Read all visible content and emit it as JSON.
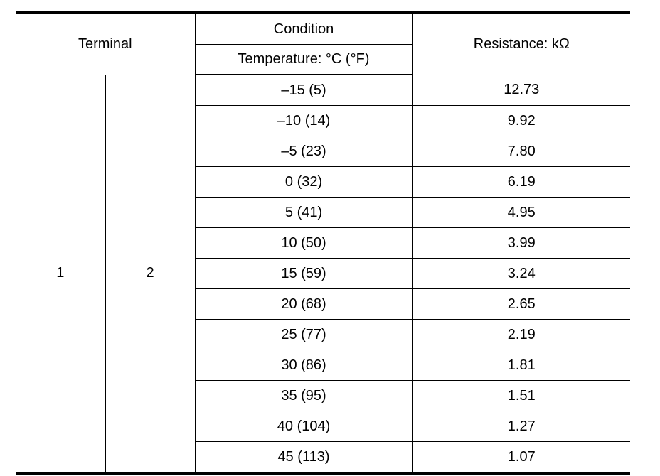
{
  "table": {
    "header": {
      "terminal": "Terminal",
      "condition": "Condition",
      "temperature": "Temperature: °C (°F)",
      "resistance": "Resistance: kΩ"
    },
    "terminal_a": "1",
    "terminal_b": "2",
    "rows": [
      {
        "temp": "–15 (5)",
        "resistance": "12.73"
      },
      {
        "temp": "–10 (14)",
        "resistance": "9.92"
      },
      {
        "temp": "–5 (23)",
        "resistance": "7.80"
      },
      {
        "temp": "0 (32)",
        "resistance": "6.19"
      },
      {
        "temp": "5 (41)",
        "resistance": "4.95"
      },
      {
        "temp": "10 (50)",
        "resistance": "3.99"
      },
      {
        "temp": "15 (59)",
        "resistance": "3.24"
      },
      {
        "temp": "20 (68)",
        "resistance": "2.65"
      },
      {
        "temp": "25 (77)",
        "resistance": "2.19"
      },
      {
        "temp": "30 (86)",
        "resistance": "1.81"
      },
      {
        "temp": "35 (95)",
        "resistance": "1.51"
      },
      {
        "temp": "40 (104)",
        "resistance": "1.27"
      },
      {
        "temp": "45 (113)",
        "resistance": "1.07"
      }
    ]
  }
}
